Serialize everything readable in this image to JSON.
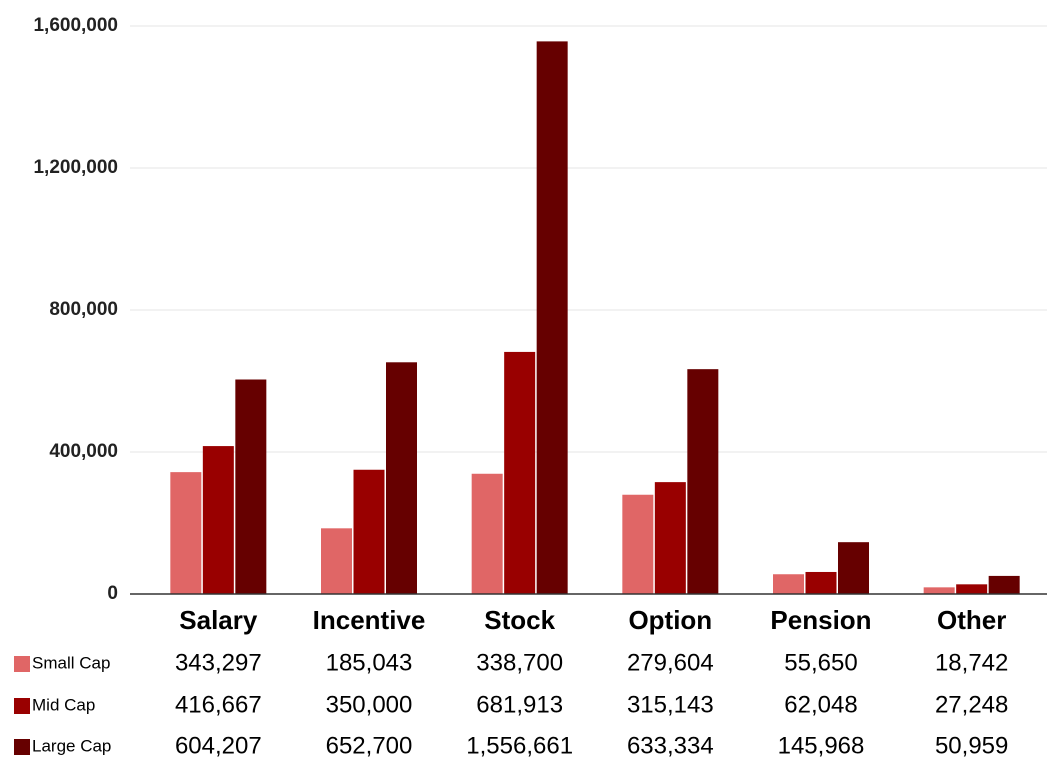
{
  "chart_data": {
    "type": "bar",
    "categories": [
      "Salary",
      "Incentive",
      "Stock",
      "Option",
      "Pension",
      "Other"
    ],
    "series": [
      {
        "name": "Small Cap",
        "color": "#e06666",
        "values": [
          343297,
          185043,
          338700,
          279604,
          55650,
          18742
        ],
        "value_labels": [
          "343,297",
          "185,043",
          "338,700",
          "279,604",
          "55,650",
          "18,742"
        ]
      },
      {
        "name": "Mid Cap",
        "color": "#990000",
        "values": [
          416667,
          350000,
          681913,
          315143,
          62048,
          27248
        ],
        "value_labels": [
          "416,667",
          "350,000",
          "681,913",
          "315,143",
          "62,048",
          "27,248"
        ]
      },
      {
        "name": "Large Cap",
        "color": "#660000",
        "values": [
          604207,
          652700,
          1556661,
          633334,
          145968,
          50959
        ],
        "value_labels": [
          "604,207",
          "652,700",
          "1,556,661",
          "633,334",
          "145,968",
          "50,959"
        ]
      }
    ],
    "ylim": [
      0,
      1600000
    ],
    "yticks": [
      0,
      {
        "value": 400000,
        "label": "400,000"
      },
      {
        "value": 800000,
        "label": "800,000"
      },
      {
        "value": 1200000,
        "label": "1,200,000"
      },
      {
        "value": 1600000,
        "label": "1,600,000"
      }
    ],
    "grid": true
  }
}
